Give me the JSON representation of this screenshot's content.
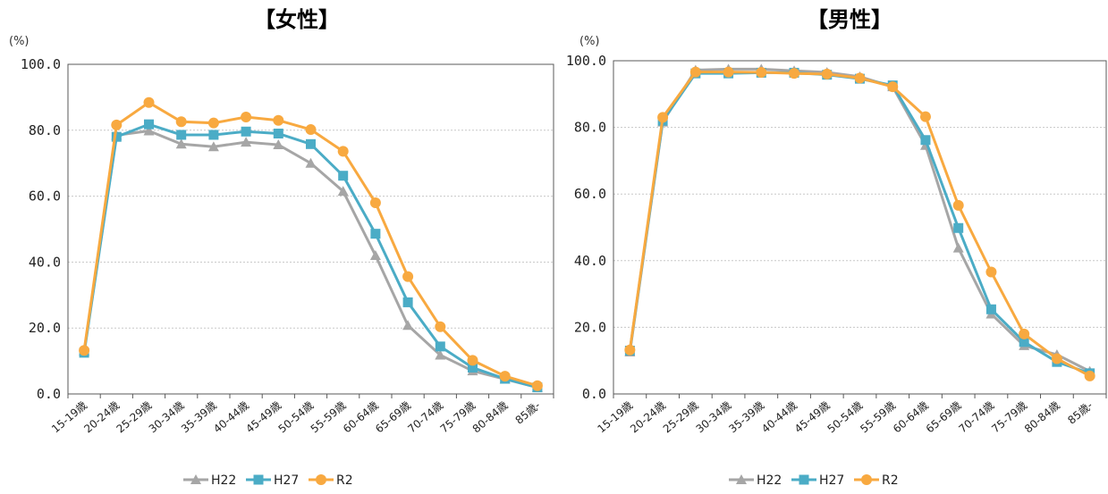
{
  "chart_data": [
    {
      "type": "line",
      "title": "【女性】",
      "unit": "(%)",
      "ylim": [
        0,
        100
      ],
      "yticks": [
        "0.0",
        "20.0",
        "40.0",
        "60.0",
        "80.0",
        "100.0"
      ],
      "grid": true,
      "legend_position": "bottom",
      "categories": [
        "15-19歳",
        "20-24歳",
        "25-29歳",
        "30-34歳",
        "35-39歳",
        "40-44歳",
        "45-49歳",
        "50-54歳",
        "55-59歳",
        "60-64歳",
        "65-69歳",
        "70-74歳",
        "75-79歳",
        "80-84歳",
        "85歳-"
      ],
      "series": [
        {
          "name": "H22",
          "color": "#a6a6a6",
          "marker": "triangle",
          "values": [
            13.0,
            78.5,
            79.8,
            75.8,
            75.0,
            76.4,
            75.6,
            70.0,
            61.5,
            42.0,
            20.8,
            11.8,
            7.0,
            4.5,
            2.0
          ]
        },
        {
          "name": "H27",
          "color": "#4bacc6",
          "marker": "square",
          "values": [
            12.5,
            78.0,
            81.8,
            78.6,
            78.6,
            79.6,
            79.0,
            75.8,
            66.2,
            48.6,
            27.8,
            14.4,
            8.0,
            4.6,
            2.0
          ]
        },
        {
          "name": "R2",
          "color": "#f8a940",
          "marker": "circle",
          "values": [
            13.2,
            81.6,
            88.4,
            82.6,
            82.2,
            84.0,
            83.0,
            80.2,
            73.6,
            58.0,
            35.6,
            20.4,
            10.2,
            5.4,
            2.5
          ]
        }
      ]
    },
    {
      "type": "line",
      "title": "【男性】",
      "unit": "(%)",
      "ylim": [
        0,
        100
      ],
      "yticks": [
        "0.0",
        "20.0",
        "40.0",
        "60.0",
        "80.0",
        "100.0"
      ],
      "grid": true,
      "legend_position": "bottom",
      "categories": [
        "15-19歳",
        "20-24歳",
        "25-29歳",
        "30-34歳",
        "35-39歳",
        "40-44歳",
        "45-49歳",
        "50-54歳",
        "55-59歳",
        "60-64歳",
        "65-69歳",
        "70-74歳",
        "75-79歳",
        "80-84歳",
        "85歳-"
      ],
      "series": [
        {
          "name": "H22",
          "color": "#a6a6a6",
          "marker": "triangle",
          "values": [
            12.6,
            81.6,
            97.2,
            97.5,
            97.5,
            97.0,
            96.5,
            95.2,
            92.2,
            74.6,
            43.8,
            24.0,
            14.5,
            11.8,
            6.8
          ]
        },
        {
          "name": "H27",
          "color": "#4bacc6",
          "marker": "square",
          "values": [
            13.0,
            82.0,
            96.2,
            96.2,
            96.4,
            96.4,
            95.8,
            94.6,
            92.6,
            76.2,
            49.8,
            25.4,
            15.6,
            9.6,
            6.2
          ]
        },
        {
          "name": "R2",
          "color": "#f8a940",
          "marker": "circle",
          "values": [
            13.2,
            83.0,
            96.6,
            96.6,
            96.5,
            96.2,
            96.0,
            94.8,
            92.2,
            83.2,
            56.6,
            36.6,
            18.0,
            10.6,
            5.4
          ]
        }
      ]
    }
  ]
}
